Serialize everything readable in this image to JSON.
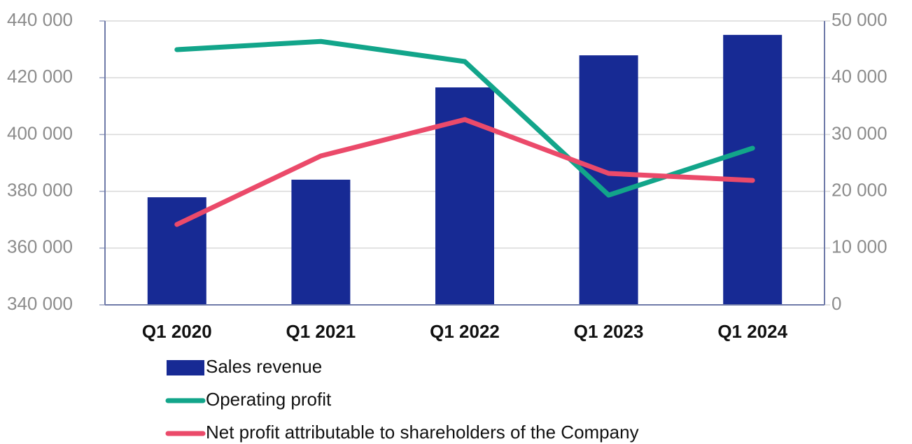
{
  "chart_data": {
    "type": "bar",
    "categories": [
      "Q1 2020",
      "Q1 2021",
      "Q1 2022",
      "Q1 2023",
      "Q1 2024"
    ],
    "series": [
      {
        "name": "Sales revenue",
        "type": "bar",
        "color": "#172a94",
        "values": [
          377900,
          384100,
          416600,
          427900,
          435100
        ]
      },
      {
        "name": "Operating profit",
        "type": "line",
        "axis": "y2",
        "color": "#12a58a",
        "values": [
          44950,
          46400,
          42860,
          19330,
          27590
        ]
      },
      {
        "name": "Net profit attributable to shareholders of the Company",
        "type": "line",
        "axis": "y2",
        "color": "#eb4a6a",
        "values": [
          14160,
          26230,
          32640,
          23150,
          21920
        ]
      }
    ],
    "ylim": [
      340000,
      440000
    ],
    "yticks": [
      {
        "value": 340000,
        "label": "340 000"
      },
      {
        "value": 360000,
        "label": "360 000"
      },
      {
        "value": 380000,
        "label": "380 000"
      },
      {
        "value": 400000,
        "label": "400 000"
      },
      {
        "value": 420000,
        "label": "420 000"
      },
      {
        "value": 440000,
        "label": "440 000"
      }
    ],
    "y2lim": [
      0,
      50000
    ],
    "y2ticks": [
      0,
      {
        "value": 10000,
        "label": "10 000"
      },
      {
        "value": 20000,
        "label": "20 000"
      },
      {
        "value": 30000,
        "label": "30 000"
      },
      {
        "value": 40000,
        "label": "40 000"
      },
      {
        "value": 50000,
        "label": "50 000"
      }
    ],
    "grid": true,
    "legend": "bottom"
  }
}
